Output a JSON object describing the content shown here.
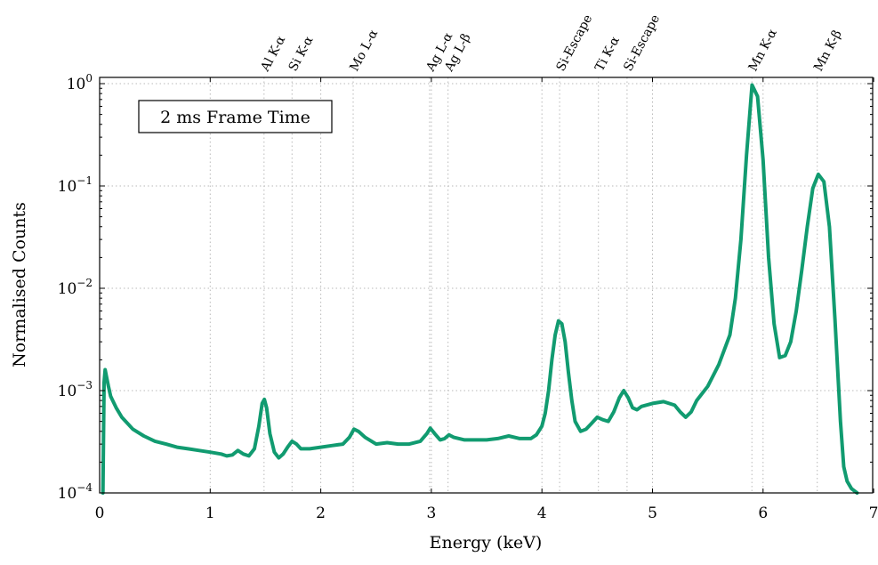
{
  "chart_data": {
    "type": "line",
    "xlabel": "Energy (keV)",
    "ylabel": "Normalised Counts",
    "xlim": [
      0,
      7
    ],
    "ylim": [
      0.0001,
      1.2
    ],
    "yscale": "log",
    "grid": true,
    "x_ticks": [
      0,
      1,
      2,
      3,
      4,
      5,
      6,
      7
    ],
    "y_ticks": [
      {
        "value": 0.0001,
        "base": "10",
        "exp": "−4"
      },
      {
        "value": 0.001,
        "base": "10",
        "exp": "−3"
      },
      {
        "value": 0.01,
        "base": "10",
        "exp": "−2"
      },
      {
        "value": 0.1,
        "base": "10",
        "exp": "−1"
      },
      {
        "value": 1,
        "base": "10",
        "exp": "0"
      }
    ],
    "annotation": "2 ms Frame Time",
    "line_color": "#119b70",
    "emission_lines": [
      {
        "energy": 1.487,
        "label": "Al K-α"
      },
      {
        "energy": 1.74,
        "label": "Si K-α"
      },
      {
        "energy": 2.293,
        "label": "Mo L-α"
      },
      {
        "energy": 2.984,
        "label": "Ag L-α"
      },
      {
        "energy": 3.151,
        "label": "Ag L-β"
      },
      {
        "energy": 4.16,
        "label": "Si-Escape"
      },
      {
        "energy": 4.511,
        "label": "Ti K-α"
      },
      {
        "energy": 4.77,
        "label": "Si-Escape"
      },
      {
        "energy": 5.899,
        "label": "Mn K-α"
      },
      {
        "energy": 6.49,
        "label": "Mn K-β"
      }
    ],
    "series": [
      {
        "x": [
          0.03,
          0.04,
          0.05,
          0.06,
          0.08,
          0.1,
          0.15,
          0.2,
          0.3,
          0.4,
          0.5,
          0.6,
          0.7,
          0.8,
          0.9,
          1.0,
          1.1,
          1.15,
          1.2,
          1.25,
          1.3,
          1.35,
          1.4,
          1.44,
          1.47,
          1.49,
          1.51,
          1.54,
          1.58,
          1.62,
          1.66,
          1.7,
          1.74,
          1.78,
          1.82,
          1.9,
          2.0,
          2.1,
          2.2,
          2.26,
          2.3,
          2.34,
          2.4,
          2.5,
          2.6,
          2.7,
          2.8,
          2.9,
          2.96,
          2.99,
          3.03,
          3.08,
          3.12,
          3.16,
          3.2,
          3.3,
          3.4,
          3.5,
          3.6,
          3.7,
          3.8,
          3.9,
          3.95,
          4.0,
          4.03,
          4.06,
          4.09,
          4.12,
          4.15,
          4.18,
          4.21,
          4.24,
          4.27,
          4.3,
          4.35,
          4.4,
          4.45,
          4.5,
          4.55,
          4.6,
          4.65,
          4.7,
          4.74,
          4.78,
          4.82,
          4.86,
          4.9,
          5.0,
          5.1,
          5.2,
          5.25,
          5.3,
          5.35,
          5.4,
          5.5,
          5.6,
          5.7,
          5.75,
          5.8,
          5.85,
          5.9,
          5.95,
          6.0,
          6.05,
          6.1,
          6.15,
          6.2,
          6.25,
          6.3,
          6.35,
          6.4,
          6.45,
          6.5,
          6.55,
          6.6,
          6.65,
          6.7,
          6.73,
          6.76,
          6.8,
          6.85
        ],
        "y": [
          0.0001,
          0.0012,
          0.0016,
          0.0014,
          0.0011,
          0.00088,
          0.00068,
          0.00055,
          0.00042,
          0.00036,
          0.00032,
          0.0003,
          0.00028,
          0.00027,
          0.00026,
          0.00025,
          0.00024,
          0.00023,
          0.000235,
          0.00026,
          0.00024,
          0.00023,
          0.00027,
          0.00045,
          0.00075,
          0.00082,
          0.00068,
          0.00038,
          0.00025,
          0.00022,
          0.00024,
          0.00028,
          0.00032,
          0.0003,
          0.00027,
          0.00027,
          0.00028,
          0.00029,
          0.0003,
          0.00035,
          0.00042,
          0.0004,
          0.00035,
          0.0003,
          0.00031,
          0.0003,
          0.0003,
          0.00032,
          0.00038,
          0.00043,
          0.00038,
          0.00033,
          0.00034,
          0.00037,
          0.00035,
          0.00033,
          0.00033,
          0.00033,
          0.00034,
          0.00036,
          0.00034,
          0.00034,
          0.00037,
          0.00045,
          0.0006,
          0.001,
          0.002,
          0.0035,
          0.0048,
          0.0045,
          0.003,
          0.0015,
          0.0008,
          0.0005,
          0.0004,
          0.00042,
          0.00048,
          0.00055,
          0.00052,
          0.0005,
          0.00062,
          0.00085,
          0.001,
          0.00085,
          0.00068,
          0.00065,
          0.0007,
          0.00075,
          0.00078,
          0.00072,
          0.00062,
          0.00055,
          0.00062,
          0.0008,
          0.0011,
          0.0018,
          0.0035,
          0.008,
          0.03,
          0.2,
          0.97,
          0.75,
          0.18,
          0.02,
          0.0045,
          0.0021,
          0.0022,
          0.003,
          0.006,
          0.015,
          0.04,
          0.095,
          0.13,
          0.11,
          0.04,
          0.005,
          0.0005,
          0.00018,
          0.00013,
          0.00011,
          0.0001
        ]
      }
    ]
  }
}
